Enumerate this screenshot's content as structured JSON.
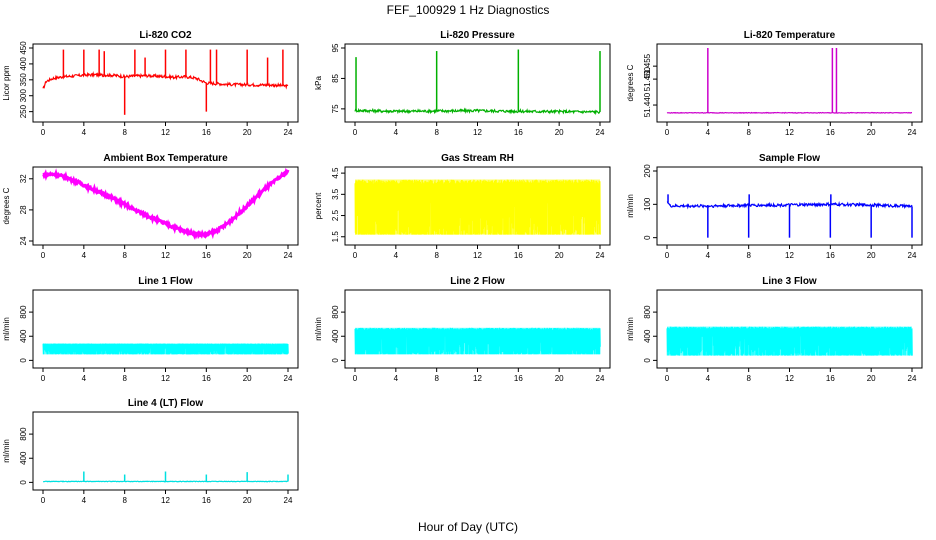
{
  "figure": {
    "title": "FEF_100929  1 Hz Diagnostics",
    "xlabel": "Hour of Day (UTC)"
  },
  "chart_data": [
    {
      "type": "line",
      "title": "Li-820 CO2",
      "ylabel": "Licor ppm",
      "color": "#ff0000",
      "xlim": [
        0,
        24
      ],
      "ylim": [
        230,
        450
      ],
      "xticks": [
        "0",
        "4",
        "8",
        "12",
        "16",
        "20",
        "24"
      ],
      "yticks": [
        "250",
        "300",
        "350",
        "400",
        "450"
      ],
      "ytick_values": [
        250,
        300,
        350,
        400,
        450
      ],
      "series": [
        {
          "x": [
            0,
            0.3,
            1,
            2,
            3,
            4,
            5,
            6,
            7,
            8,
            9,
            10,
            11,
            12,
            13,
            14,
            15,
            16,
            17,
            18,
            19,
            20,
            21,
            22,
            23,
            24
          ],
          "y": [
            320,
            345,
            355,
            360,
            362,
            365,
            366,
            365,
            364,
            360,
            362,
            363,
            362,
            360,
            358,
            360,
            355,
            340,
            338,
            336,
            335,
            335,
            334,
            334,
            333,
            330
          ]
        }
      ],
      "spikes": [
        {
          "x": 2,
          "to": 445
        },
        {
          "x": 4,
          "to": 445
        },
        {
          "x": 5.5,
          "to": 445
        },
        {
          "x": 6,
          "to": 440
        },
        {
          "x": 8,
          "to": 240
        },
        {
          "x": 9,
          "to": 445
        },
        {
          "x": 10,
          "to": 420
        },
        {
          "x": 12,
          "to": 445
        },
        {
          "x": 14,
          "to": 445
        },
        {
          "x": 16,
          "to": 250
        },
        {
          "x": 16.4,
          "to": 445
        },
        {
          "x": 17,
          "to": 445
        },
        {
          "x": 20,
          "to": 445
        },
        {
          "x": 22,
          "to": 420
        },
        {
          "x": 23.5,
          "to": 445
        }
      ]
    },
    {
      "type": "line",
      "title": "Li-820 Pressure",
      "ylabel": "kPa",
      "color": "#00b000",
      "xlim": [
        0,
        24
      ],
      "ylim": [
        72,
        95
      ],
      "xticks": [
        "0",
        "4",
        "8",
        "12",
        "16",
        "20",
        "24"
      ],
      "yticks": [
        "75",
        "85",
        "95"
      ],
      "ytick_values": [
        75,
        85,
        95
      ],
      "series": [
        {
          "x": [
            0,
            4,
            8,
            12,
            16,
            20,
            24
          ],
          "y": [
            74.5,
            74.2,
            74.3,
            74.4,
            74.2,
            74.1,
            74.0
          ]
        }
      ],
      "spikes": [
        {
          "x": 0.1,
          "to": 92
        },
        {
          "x": 8,
          "to": 94
        },
        {
          "x": 16,
          "to": 94.5
        },
        {
          "x": 24,
          "to": 94
        }
      ]
    },
    {
      "type": "line",
      "title": "Li-820 Temperature",
      "ylabel": "degrees C",
      "color": "#cc00cc",
      "xlim": [
        0,
        24
      ],
      "ylim": [
        51.435,
        51.462
      ],
      "xticks": [
        "0",
        "4",
        "8",
        "12",
        "16",
        "20",
        "24"
      ],
      "yticks": [
        "51.440",
        "51.450",
        "51.455"
      ],
      "ytick_values": [
        51.44,
        51.45,
        51.455
      ],
      "series": [
        {
          "x": [
            0,
            24
          ],
          "y": [
            51.437,
            51.437
          ]
        }
      ],
      "spikes": [
        {
          "x": 4,
          "to": 51.462
        },
        {
          "x": 16.2,
          "to": 51.462
        },
        {
          "x": 16.6,
          "to": 51.462
        }
      ]
    },
    {
      "type": "line",
      "title": "Ambient Box Temperature",
      "ylabel": "degrees C",
      "color": "#ff00ff",
      "xlim": [
        0,
        24
      ],
      "ylim": [
        24,
        33
      ],
      "xticks": [
        "0",
        "4",
        "8",
        "12",
        "16",
        "20",
        "24"
      ],
      "yticks": [
        "24",
        "28",
        "32"
      ],
      "ytick_values": [
        24,
        28,
        32
      ],
      "series": [
        {
          "x": [
            0,
            1,
            2,
            3,
            4,
            5,
            6,
            7,
            8,
            9,
            10,
            11,
            12,
            13,
            14,
            15,
            16,
            17,
            18,
            19,
            20,
            21,
            22,
            23,
            24
          ],
          "y": [
            32.5,
            32.6,
            32.3,
            31.8,
            31.2,
            30.6,
            30.0,
            29.4,
            28.7,
            28.0,
            27.4,
            26.8,
            26.2,
            25.7,
            25.2,
            24.9,
            24.8,
            25.3,
            26.2,
            27.3,
            28.5,
            29.8,
            31.0,
            32.0,
            33.0
          ]
        }
      ]
    },
    {
      "type": "area",
      "title": "Gas Stream RH",
      "ylabel": "percent",
      "color": "#ffff00",
      "xlim": [
        0,
        24
      ],
      "ylim": [
        1.3,
        4.6
      ],
      "xticks": [
        "0",
        "4",
        "8",
        "12",
        "16",
        "20",
        "24"
      ],
      "yticks": [
        "1.5",
        "2.5",
        "3.5",
        "4.5"
      ],
      "ytick_values": [
        1.5,
        2.5,
        3.5,
        4.5
      ],
      "band": {
        "lower": 1.6,
        "upper": 4.2
      }
    },
    {
      "type": "line",
      "title": "Sample Flow",
      "ylabel": "ml/min",
      "color": "#0000ff",
      "xlim": [
        0,
        24
      ],
      "ylim": [
        -10,
        200
      ],
      "xticks": [
        "0",
        "4",
        "8",
        "12",
        "16",
        "20",
        "24"
      ],
      "yticks": [
        "0",
        "100",
        "200"
      ],
      "ytick_values": [
        0,
        100,
        200
      ],
      "series": [
        {
          "x": [
            0,
            0.3,
            4,
            8,
            12,
            16,
            20,
            24
          ],
          "y": [
            110,
            95,
            95,
            97,
            98,
            100,
            98,
            94
          ]
        }
      ],
      "spikes": [
        {
          "x": 0.1,
          "to": 130
        },
        {
          "x": 4,
          "to": 0
        },
        {
          "x": 8,
          "to": 0
        },
        {
          "x": 8.05,
          "to": 130
        },
        {
          "x": 12,
          "to": 0
        },
        {
          "x": 16,
          "to": 0
        },
        {
          "x": 16.05,
          "to": 130
        },
        {
          "x": 20,
          "to": 0
        },
        {
          "x": 24,
          "to": 0
        }
      ]
    },
    {
      "type": "area",
      "title": "Line 1 Flow",
      "ylabel": "ml/min",
      "color": "#00ffff",
      "xlim": [
        0,
        24
      ],
      "ylim": [
        -60,
        1100
      ],
      "xticks": [
        "0",
        "4",
        "8",
        "12",
        "16",
        "20",
        "24"
      ],
      "yticks": [
        "0",
        "400",
        "800"
      ],
      "ytick_values": [
        0,
        400,
        800
      ],
      "band": {
        "lower": 100,
        "upper": 280
      }
    },
    {
      "type": "area",
      "title": "Line 2 Flow",
      "ylabel": "ml/min",
      "color": "#00ffff",
      "xlim": [
        0,
        24
      ],
      "ylim": [
        -60,
        1100
      ],
      "xticks": [
        "0",
        "4",
        "8",
        "12",
        "16",
        "20",
        "24"
      ],
      "yticks": [
        "0",
        "400",
        "800"
      ],
      "ytick_values": [
        0,
        400,
        800
      ],
      "band": {
        "lower": 100,
        "upper": 540
      }
    },
    {
      "type": "area",
      "title": "Line 3 Flow",
      "ylabel": "ml/min",
      "color": "#00ffff",
      "xlim": [
        0,
        24
      ],
      "ylim": [
        -60,
        1100
      ],
      "xticks": [
        "0",
        "4",
        "8",
        "12",
        "16",
        "20",
        "24"
      ],
      "yticks": [
        "0",
        "400",
        "800"
      ],
      "ytick_values": [
        0,
        400,
        800
      ],
      "band": {
        "lower": 80,
        "upper": 560
      }
    },
    {
      "type": "line",
      "title": "Line 4 (LT) Flow",
      "ylabel": "ml/min",
      "color": "#00e0e0",
      "xlim": [
        0,
        24
      ],
      "ylim": [
        -60,
        1100
      ],
      "xticks": [
        "0",
        "4",
        "8",
        "12",
        "16",
        "20",
        "24"
      ],
      "yticks": [
        "0",
        "400",
        "800"
      ],
      "ytick_values": [
        0,
        400,
        800
      ],
      "series": [
        {
          "x": [
            0,
            24
          ],
          "y": [
            15,
            15
          ]
        }
      ],
      "spikes": [
        {
          "x": 4,
          "to": 180
        },
        {
          "x": 8,
          "to": 130
        },
        {
          "x": 12,
          "to": 180
        },
        {
          "x": 16,
          "to": 130
        },
        {
          "x": 20,
          "to": 170
        },
        {
          "x": 24,
          "to": 130
        }
      ]
    }
  ]
}
